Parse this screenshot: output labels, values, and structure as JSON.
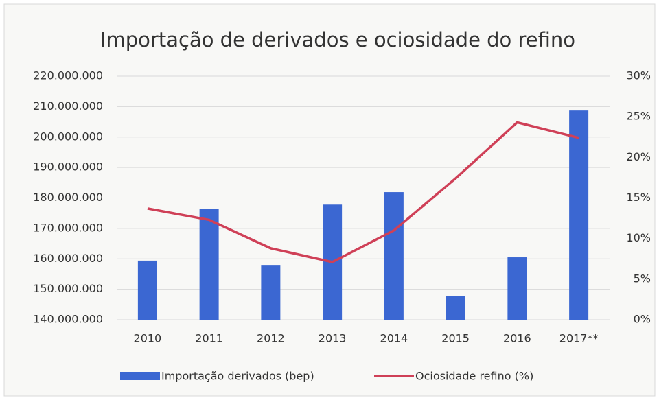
{
  "chart_data": {
    "type": "bar-line",
    "title": "Importação de derivados e ociosidade do refino",
    "categories": [
      "2010",
      "2011",
      "2012",
      "2013",
      "2014",
      "2015",
      "2016",
      "2017**"
    ],
    "series": [
      {
        "name": "Importação derivados (bep)",
        "type": "bar",
        "color": "#3b67d2",
        "values": [
          159400000,
          176300000,
          158000000,
          177800000,
          181900000,
          147700000,
          160500000,
          208700000
        ]
      },
      {
        "name": "Ociosidade refino (%)",
        "type": "line",
        "axis": "y2",
        "color": "#cf4057",
        "values": [
          13.7,
          12.3,
          8.8,
          7.1,
          11.0,
          17.4,
          24.3,
          22.4
        ]
      }
    ],
    "ylim": [
      140000000,
      220000000
    ],
    "yticks": [
      {
        "value": 140000000,
        "label": "140.000.000"
      },
      {
        "value": 150000000,
        "label": "150.000.000"
      },
      {
        "value": 160000000,
        "label": "160.000.000"
      },
      {
        "value": 170000000,
        "label": "170.000.000"
      },
      {
        "value": 180000000,
        "label": "180.000.000"
      },
      {
        "value": 190000000,
        "label": "190.000.000"
      },
      {
        "value": 200000000,
        "label": "200.000.000"
      },
      {
        "value": 210000000,
        "label": "210.000.000"
      },
      {
        "value": 220000000,
        "label": "220.000.000"
      }
    ],
    "y2lim": [
      0,
      30
    ],
    "y2ticks": [
      {
        "value": 0,
        "label": "0%"
      },
      {
        "value": 5,
        "label": "5%"
      },
      {
        "value": 10,
        "label": "10%"
      },
      {
        "value": 15,
        "label": "15%"
      },
      {
        "value": 20,
        "label": "20%"
      },
      {
        "value": 25,
        "label": "25%"
      },
      {
        "value": 30,
        "label": "30%"
      }
    ],
    "grid": true,
    "legend": "bottom"
  }
}
